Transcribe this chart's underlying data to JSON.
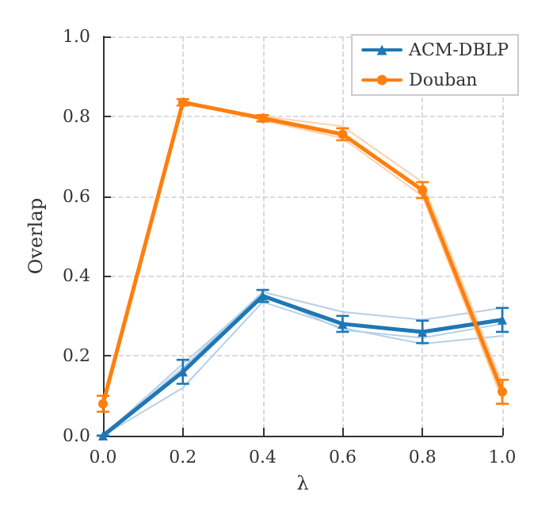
{
  "chart_data": {
    "type": "line",
    "xlabel": "λ",
    "ylabel": "Overlap",
    "x": [
      0,
      0.2,
      0.4,
      0.6,
      0.8,
      1.0
    ],
    "series": [
      {
        "color": "#b5d0e8",
        "marker": "none",
        "values": [
          0,
          0.12,
          0.335,
          0.27,
          0.23,
          0.25
        ]
      },
      {
        "color": "#b5d0e8",
        "marker": "none",
        "values": [
          0,
          0.17,
          0.36,
          0.31,
          0.29,
          0.32
        ]
      },
      {
        "color": "#b5d0e8",
        "marker": "none",
        "values": [
          0,
          0.18,
          0.355,
          0.265,
          0.245,
          0.28
        ]
      },
      {
        "color": "#fdd2ad",
        "marker": "none",
        "values": [
          0.08,
          0.83,
          0.8,
          0.775,
          0.635,
          0.13
        ]
      },
      {
        "color": "#fdd2ad",
        "marker": "none",
        "values": [
          0.08,
          0.84,
          0.79,
          0.745,
          0.6,
          0.09
        ]
      },
      {
        "name": "ACM-DBLP",
        "color": "#1f77b4",
        "marker": "triangle",
        "values": [
          0,
          0.16,
          0.35,
          0.28,
          0.26,
          0.29
        ],
        "errors": [
          0,
          0.03,
          0.015,
          0.02,
          0.028,
          0.03
        ]
      },
      {
        "name": "Douban",
        "color": "#ff7f0e",
        "marker": "circle",
        "values": [
          0.08,
          0.835,
          0.795,
          0.755,
          0.615,
          0.11
        ],
        "errors": [
          0.02,
          0.008,
          0.008,
          0.015,
          0.02,
          0.03
        ]
      }
    ],
    "xlim": [
      0,
      1.0
    ],
    "ylim": [
      0,
      1.0
    ],
    "xticks": [
      {
        "value": 0,
        "label": "0.0"
      },
      0.2,
      0.4,
      0.6,
      0.8,
      {
        "value": 1.0,
        "label": "1.0"
      }
    ],
    "yticks": [
      {
        "value": 0,
        "label": "0.0"
      },
      0.2,
      0.4,
      0.6,
      0.8,
      {
        "value": 1.0,
        "label": "1.0"
      }
    ],
    "grid": true,
    "legend": "top right",
    "line_style": "solid"
  }
}
